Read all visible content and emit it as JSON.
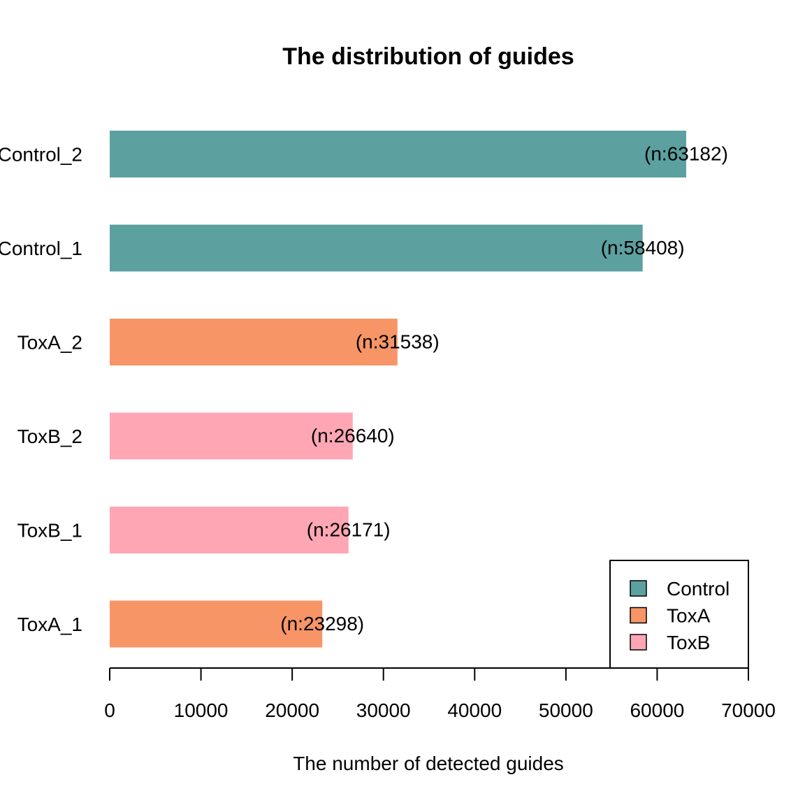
{
  "chart_data": {
    "type": "bar",
    "orientation": "horizontal",
    "title": "The distribution of guides",
    "xlabel": "The number of detected guides",
    "ylabel": "",
    "xlim": [
      0,
      70000
    ],
    "xticks": [
      "0",
      "10000",
      "20000",
      "30000",
      "40000",
      "50000",
      "60000",
      "70000"
    ],
    "grid": false,
    "bars": [
      {
        "category": "Control_2",
        "value": 63182,
        "group": "Control",
        "label": "(n:63182)"
      },
      {
        "category": "Control_1",
        "value": 58408,
        "group": "Control",
        "label": "(n:58408)"
      },
      {
        "category": "ToxA_2",
        "value": 31538,
        "group": "ToxA",
        "label": "(n:31538)"
      },
      {
        "category": "ToxB_2",
        "value": 26640,
        "group": "ToxB",
        "label": "(n:26640)"
      },
      {
        "category": "ToxB_1",
        "value": 26171,
        "group": "ToxB",
        "label": "(n:26171)"
      },
      {
        "category": "ToxA_1",
        "value": 23298,
        "group": "ToxA",
        "label": "(n:23298)"
      }
    ],
    "legend": {
      "placement": "bottom-right",
      "entries": [
        {
          "name": "Control",
          "color": "#5ca0a0"
        },
        {
          "name": "ToxA",
          "color": "#f79567"
        },
        {
          "name": "ToxB",
          "color": "#fea6b4"
        }
      ]
    }
  }
}
